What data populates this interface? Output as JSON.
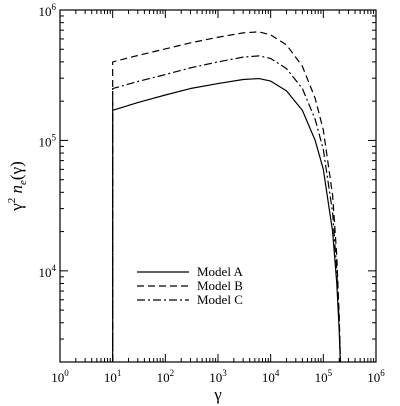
{
  "chart_data": {
    "type": "line",
    "title": "",
    "xlabel": "γ",
    "ylabel": {
      "base": "γ",
      "sup": "2",
      "mid": " n",
      "sub": "e",
      "tail": "(γ)"
    },
    "xscale": "log",
    "yscale": "log",
    "xlim": [
      1,
      1000000
    ],
    "ylim": [
      2000,
      1000000
    ],
    "x_tick_labels": [
      {
        "value": 1,
        "base": "10",
        "exp": "0"
      },
      {
        "value": 10,
        "base": "10",
        "exp": "1"
      },
      {
        "value": 100,
        "base": "10",
        "exp": "2"
      },
      {
        "value": 1000,
        "base": "10",
        "exp": "3"
      },
      {
        "value": 10000,
        "base": "10",
        "exp": "4"
      },
      {
        "value": 100000,
        "base": "10",
        "exp": "5"
      },
      {
        "value": 1000000,
        "base": "10",
        "exp": "6"
      }
    ],
    "y_tick_labels": [
      {
        "value": 10000,
        "base": "10",
        "exp": "4"
      },
      {
        "value": 100000,
        "base": "10",
        "exp": "5"
      },
      {
        "value": 1000000,
        "base": "10",
        "exp": "6"
      }
    ],
    "grid": false,
    "legend_position": "bottom-left",
    "series": [
      {
        "name": "Model A",
        "style": "solid",
        "color": "#000000",
        "points": [
          [
            10,
            2000
          ],
          [
            10,
            170000
          ],
          [
            30,
            195000
          ],
          [
            100,
            223000
          ],
          [
            300,
            250000
          ],
          [
            1000,
            273000
          ],
          [
            3000,
            293000
          ],
          [
            6000,
            298000
          ],
          [
            10000,
            285000
          ],
          [
            20000,
            240000
          ],
          [
            40000,
            170000
          ],
          [
            70000,
            100000
          ],
          [
            100000,
            60000
          ],
          [
            150000,
            20000
          ],
          [
            180000,
            8000
          ],
          [
            200000,
            3500
          ],
          [
            210000,
            2000
          ]
        ]
      },
      {
        "name": "Model B",
        "style": "dashed",
        "color": "#000000",
        "points": [
          [
            10,
            2000
          ],
          [
            10,
            400000
          ],
          [
            30,
            448000
          ],
          [
            100,
            503000
          ],
          [
            300,
            560000
          ],
          [
            1000,
            618000
          ],
          [
            3000,
            668000
          ],
          [
            6000,
            680000
          ],
          [
            10000,
            645000
          ],
          [
            20000,
            540000
          ],
          [
            40000,
            370000
          ],
          [
            70000,
            210000
          ],
          [
            100000,
            120000
          ],
          [
            150000,
            38000
          ],
          [
            180000,
            13000
          ],
          [
            200000,
            4500
          ],
          [
            212000,
            2000
          ]
        ]
      },
      {
        "name": "Model C",
        "style": "dash-dot",
        "color": "#000000",
        "points": [
          [
            10,
            2000
          ],
          [
            10,
            250000
          ],
          [
            30,
            283000
          ],
          [
            100,
            320000
          ],
          [
            300,
            360000
          ],
          [
            1000,
            400000
          ],
          [
            3000,
            435000
          ],
          [
            6000,
            445000
          ],
          [
            10000,
            425000
          ],
          [
            20000,
            355000
          ],
          [
            40000,
            250000
          ],
          [
            70000,
            145000
          ],
          [
            100000,
            85000
          ],
          [
            150000,
            28000
          ],
          [
            180000,
            10000
          ],
          [
            200000,
            4000
          ],
          [
            211000,
            2000
          ]
        ]
      }
    ]
  }
}
